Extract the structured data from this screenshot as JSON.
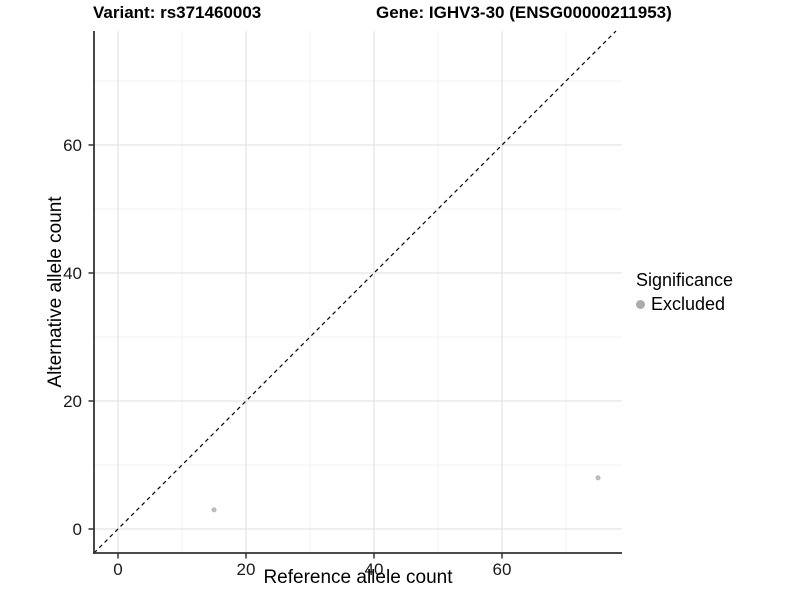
{
  "chart_data": {
    "type": "scatter",
    "titles": {
      "left": "Variant: rs371460003",
      "right": "Gene: IGHV3-30 (ENSG00000211953)"
    },
    "xlabel": "Reference allele count",
    "ylabel": "Alternative allele count",
    "xlim": [
      -3.75,
      78.75
    ],
    "ylim": [
      -3.75,
      77.81
    ],
    "x_ticks": [
      0,
      20,
      40,
      60
    ],
    "y_ticks": [
      0,
      20,
      40,
      60
    ],
    "x_minor_ticks": [
      10,
      30,
      50,
      70
    ],
    "y_minor_ticks": [
      10,
      30,
      50,
      70
    ],
    "grid": "major+minor",
    "identity_line": {
      "style": "dashed",
      "from": [
        -3.75,
        -3.75
      ],
      "to": [
        77.81,
        77.81
      ],
      "color": "#000000"
    },
    "series": [
      {
        "name": "Excluded",
        "color": "#bdbdbd",
        "points": [
          [
            15,
            3
          ],
          [
            75,
            8
          ]
        ]
      }
    ],
    "legend": {
      "title": "Significance",
      "position": "right",
      "items": [
        {
          "label": "Excluded",
          "color": "#ababab"
        }
      ]
    }
  },
  "colors": {
    "background": "#ffffff",
    "grid_major": "#e3e3e3",
    "grid_minor": "#f0f0f0",
    "axis_line": "#333333",
    "tick_mark": "#333333",
    "tick_text": "#1a1a1a"
  }
}
